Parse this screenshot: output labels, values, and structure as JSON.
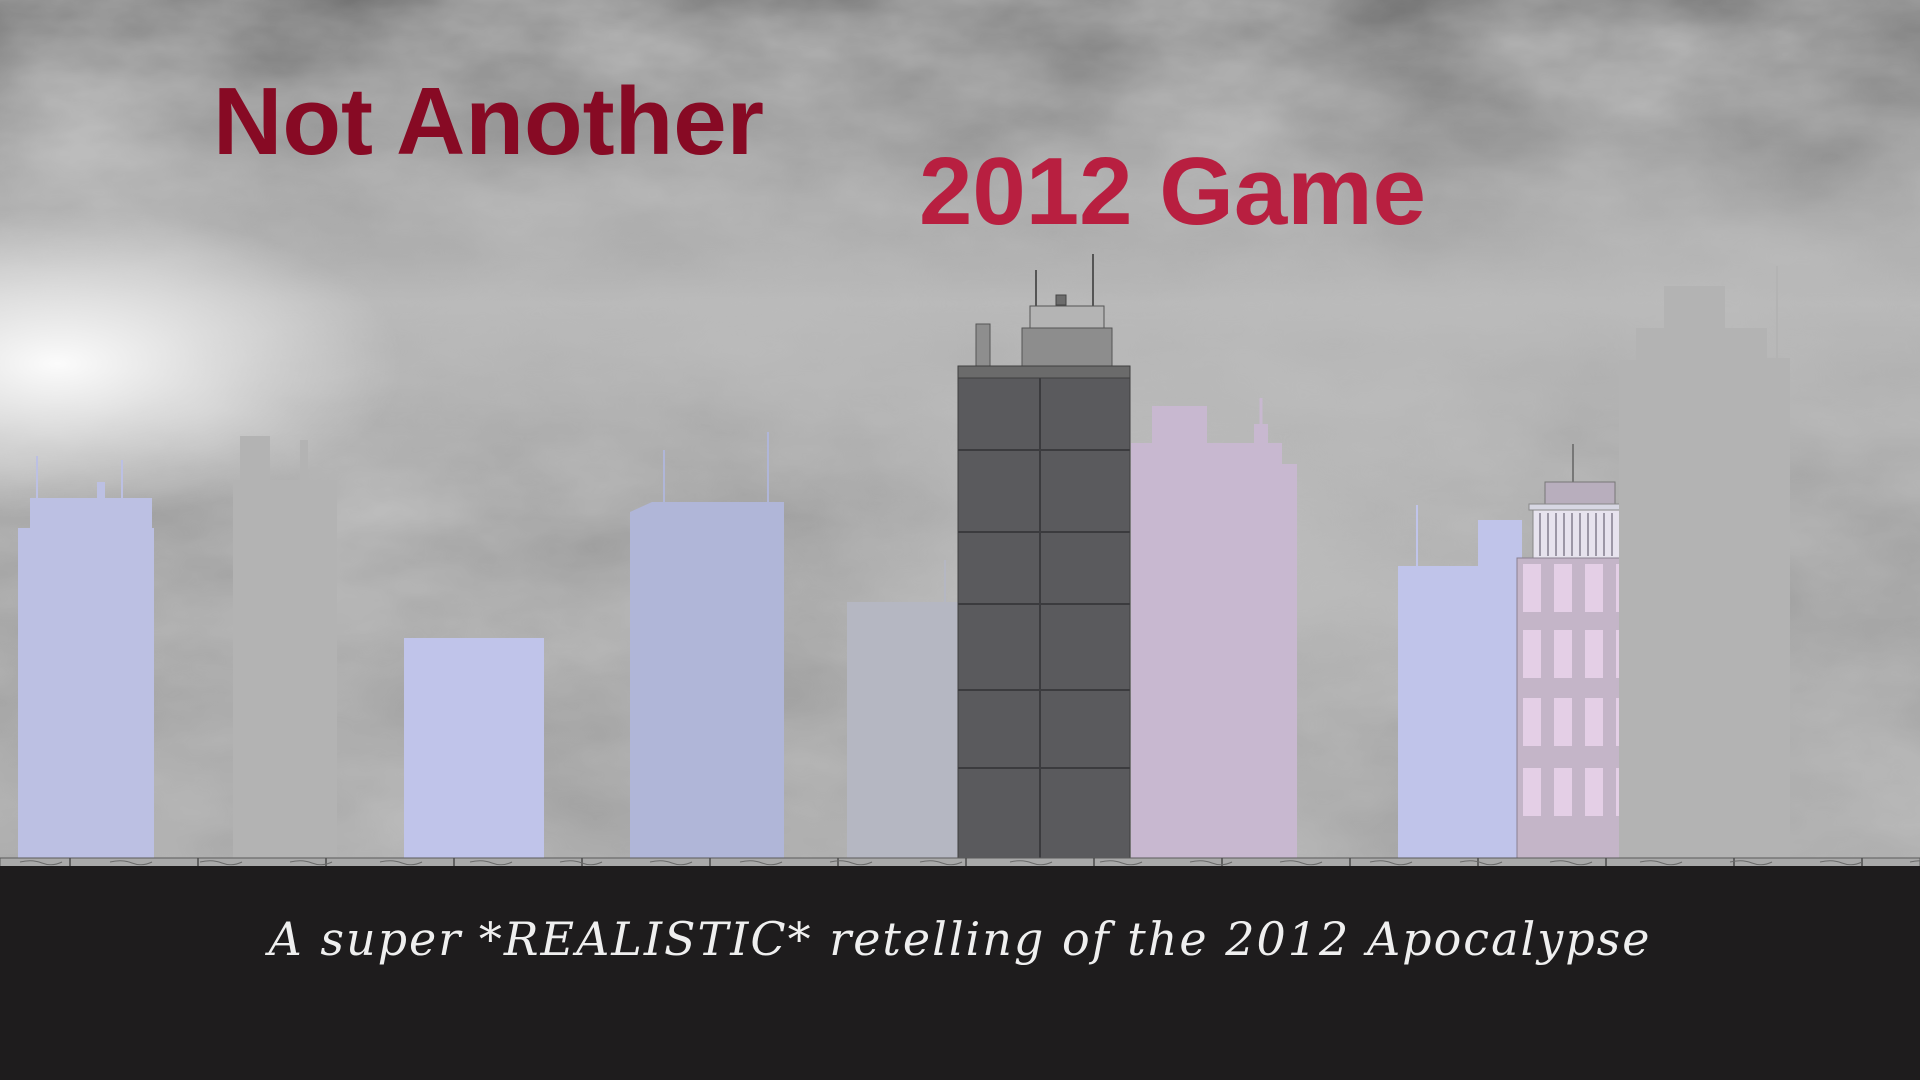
{
  "title": {
    "line1": "Not Another",
    "line2": "2012 Game",
    "line1_color": "#870a24",
    "line2_color": "#b81f40"
  },
  "tagline": "A super *REALISTIC* retelling of the 2012 Apocalypse",
  "colors": {
    "sky_dark": "#5f5f5f",
    "sky_light": "#dcdcdc",
    "ground_band": "#1e1c1d",
    "sidewalk": "#a9a9a9",
    "tagline": "#efefef",
    "building_blue": "#bdc1e6",
    "building_gray": "#b2b2b2",
    "building_dark": "#5a5a5d",
    "building_purple": "#c8b8d0",
    "window_pink": "#e4cfe6"
  },
  "skyline": [
    {
      "name": "building-blue-left",
      "color": "#bcc0e3"
    },
    {
      "name": "building-gray-left",
      "color": "#b3b3b3"
    },
    {
      "name": "building-blue-short",
      "color": "#c0c4ea"
    },
    {
      "name": "building-blue-middle",
      "color": "#b0b6d8"
    },
    {
      "name": "building-gray-low",
      "color": "#b5b7c2"
    },
    {
      "name": "building-dark-tower",
      "color": "#5a5a5d"
    },
    {
      "name": "building-purple",
      "color": "#c8b8d0"
    },
    {
      "name": "building-blue-right",
      "color": "#c0c4ea"
    },
    {
      "name": "building-pink-windows",
      "color": "#c4b5c8"
    },
    {
      "name": "building-gray-tall-right",
      "color": "#b3b3b3"
    }
  ]
}
